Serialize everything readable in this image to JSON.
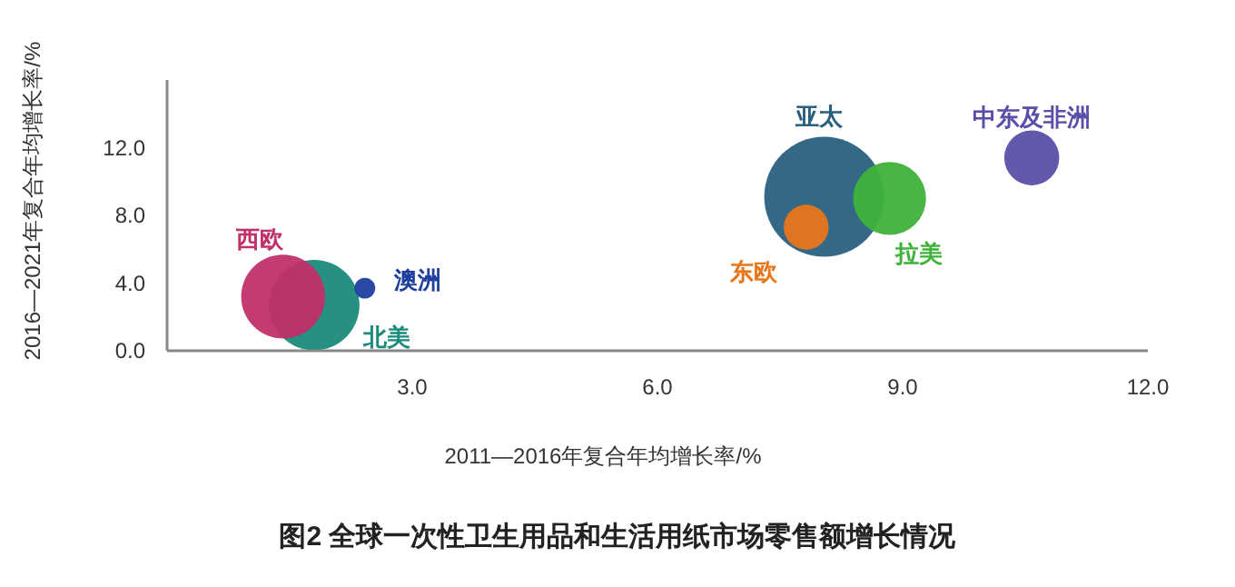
{
  "chart_data": {
    "type": "bubble",
    "title": "图2 全球一次性卫生用品和生活用纸市场零售额增长情况",
    "xlabel": "2011—2016年复合年均增长率/%",
    "ylabel": "2016—2021年复合年均增长率/%",
    "xlim": [
      0,
      12
    ],
    "ylim": [
      0,
      16
    ],
    "xticks": [
      {
        "value": 3,
        "label": "3.0"
      },
      {
        "value": 6,
        "label": "6.0"
      },
      {
        "value": 9,
        "label": "9.0"
      },
      {
        "value": 12,
        "label": "12.0"
      }
    ],
    "yticks": [
      {
        "value": 0,
        "label": "0.0"
      },
      {
        "value": 4,
        "label": "4.0"
      },
      {
        "value": 8,
        "label": "8.0"
      },
      {
        "value": 12,
        "label": "12.0"
      }
    ],
    "grid": false,
    "series": [
      {
        "name": "北美",
        "color": "#1a8a7a",
        "x": [
          1.8
        ],
        "values": [
          2.7
        ],
        "sizes": [
          0.57
        ]
      },
      {
        "name": "西欧",
        "color": "#c0306a",
        "x": [
          1.42
        ],
        "values": [
          3.2
        ],
        "sizes": [
          0.49
        ]
      },
      {
        "name": "澳洲",
        "color": "#1f3f9f",
        "x": [
          2.42
        ],
        "values": [
          3.7
        ],
        "sizes": [
          0.03
        ]
      },
      {
        "name": "亚太",
        "color": "#2a5f80",
        "x": [
          8.04
        ],
        "values": [
          9.1
        ],
        "sizes": [
          1
        ]
      },
      {
        "name": "东欧",
        "color": "#e8761a",
        "x": [
          7.82
        ],
        "values": [
          7.3
        ],
        "sizes": [
          0.14
        ]
      },
      {
        "name": "拉美",
        "color": "#3fb23a",
        "x": [
          8.84
        ],
        "values": [
          9.0
        ],
        "sizes": [
          0.37
        ]
      },
      {
        "name": "中东及非洲",
        "color": "#5a4fa8",
        "x": [
          10.58
        ],
        "values": [
          11.4
        ],
        "sizes": [
          0.21
        ]
      }
    ]
  }
}
